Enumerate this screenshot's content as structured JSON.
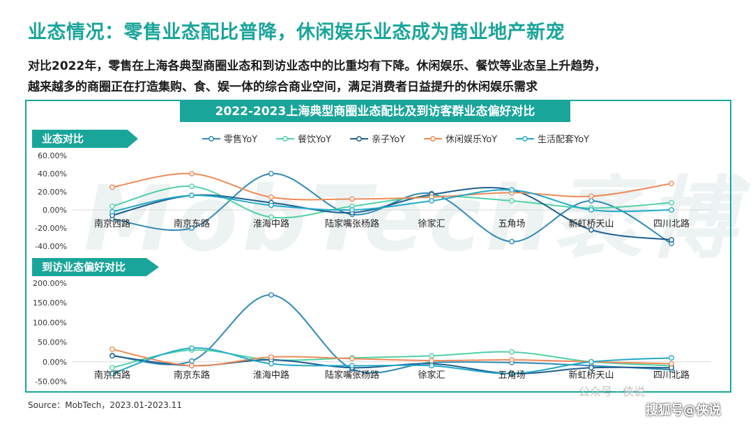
{
  "header": {
    "title": "业态情况：零售业态配比普降，休闲娱乐业态成为商业地产新宠",
    "desc_line1": "对比2022年，零售在上海各典型商圈业态和到访业态中的比重均有下降。休闲娱乐、餐饮等业态呈上升趋势，",
    "desc_line2": "越来越多的商圈正在打造集购、食、娱一体的综合商业空间，满足消费者日益提升的休闲娱乐需求"
  },
  "watermark": "MobTech袤博",
  "footer": {
    "source": "Source：MobTech，2023.01-2023.11",
    "brand_watermark": "公众号 · 侠说",
    "sohu_watermark": "搜狐号@侠说"
  },
  "colors": {
    "accent": "#1aa59a",
    "零售YoY": "#2d8ab5",
    "餐饮YoY": "#4fd1a6",
    "亲子YoY": "#1f5f8f",
    "休闲娱乐YoY": "#ee8a57",
    "生活配套YoY": "#22a9c9"
  },
  "chart_data": {
    "title": "2022-2023上海典型商圈业态配比及到访客群业态偏好对比",
    "legend": [
      "零售YoY",
      "餐饮YoY",
      "亲子YoY",
      "休闲娱乐YoY",
      "生活配套YoY"
    ],
    "legend_position": "top-center",
    "charts": [
      {
        "type": "line",
        "title": "业态对比",
        "categories": [
          "南京西路",
          "南京东路",
          "淮海中路",
          "陆家嘴张杨路",
          "徐家汇",
          "五角场",
          "新虹桥天山",
          "四川北路"
        ],
        "yticks": [
          "60.00%",
          "40.00%",
          "20.00%",
          "0.00%",
          "-20.00%",
          "-40.00%"
        ],
        "ylim": [
          -40,
          60
        ],
        "grid": false,
        "series": [
          {
            "name": "零售YoY",
            "values": [
              -10,
              -20,
              40,
              -5,
              18,
              -35,
              10,
              -37
            ]
          },
          {
            "name": "餐饮YoY",
            "values": [
              4,
              26,
              -8,
              4,
              15,
              10,
              2,
              8
            ]
          },
          {
            "name": "亲子YoY",
            "values": [
              -6,
              16,
              8,
              -3,
              17,
              22,
              -22,
              -33
            ]
          },
          {
            "name": "休闲娱乐YoY",
            "values": [
              25,
              40,
              14,
              12,
              14,
              19,
              15,
              29
            ]
          },
          {
            "name": "生活配套YoY",
            "values": [
              -2,
              16,
              5,
              0,
              10,
              22,
              0,
              0
            ]
          }
        ]
      },
      {
        "type": "line",
        "title": "到访业态偏好对比",
        "categories": [
          "南京西路",
          "南京东路",
          "淮海中路",
          "陆家嘴张杨路",
          "徐家汇",
          "五角场",
          "新虹桥天山",
          "四川北路"
        ],
        "yticks": [
          "200.00%",
          "150.00%",
          "100.00%",
          "50.00%",
          "0.00%",
          "-50.00%"
        ],
        "ylim": [
          -50,
          200
        ],
        "grid": false,
        "series": [
          {
            "name": "零售YoY",
            "values": [
              16,
              2,
              170,
              -18,
              -2,
              -2,
              -10,
              -20
            ]
          },
          {
            "name": "餐饮YoY",
            "values": [
              -15,
              30,
              5,
              10,
              15,
              25,
              0,
              -10
            ]
          },
          {
            "name": "亲子YoY",
            "values": [
              15,
              -10,
              5,
              -15,
              -5,
              -30,
              -15,
              -15
            ]
          },
          {
            "name": "休闲娱乐YoY",
            "values": [
              32,
              -10,
              12,
              8,
              3,
              5,
              0,
              -5
            ]
          },
          {
            "name": "生活配套YoY",
            "values": [
              -30,
              35,
              -5,
              -10,
              -10,
              -30,
              0,
              10
            ]
          }
        ]
      }
    ]
  }
}
